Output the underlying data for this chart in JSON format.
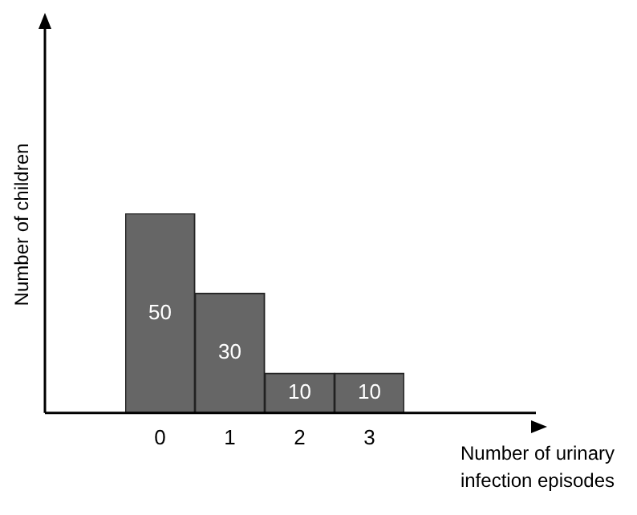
{
  "chart_data": {
    "type": "bar",
    "categories": [
      "0",
      "1",
      "2",
      "3"
    ],
    "values": [
      50,
      30,
      10,
      10
    ],
    "color": "#666666",
    "xlabel": "Number of urinary infection episodes",
    "ylabel": "Number of children",
    "data_labels": true,
    "grid": false,
    "legend": false
  }
}
